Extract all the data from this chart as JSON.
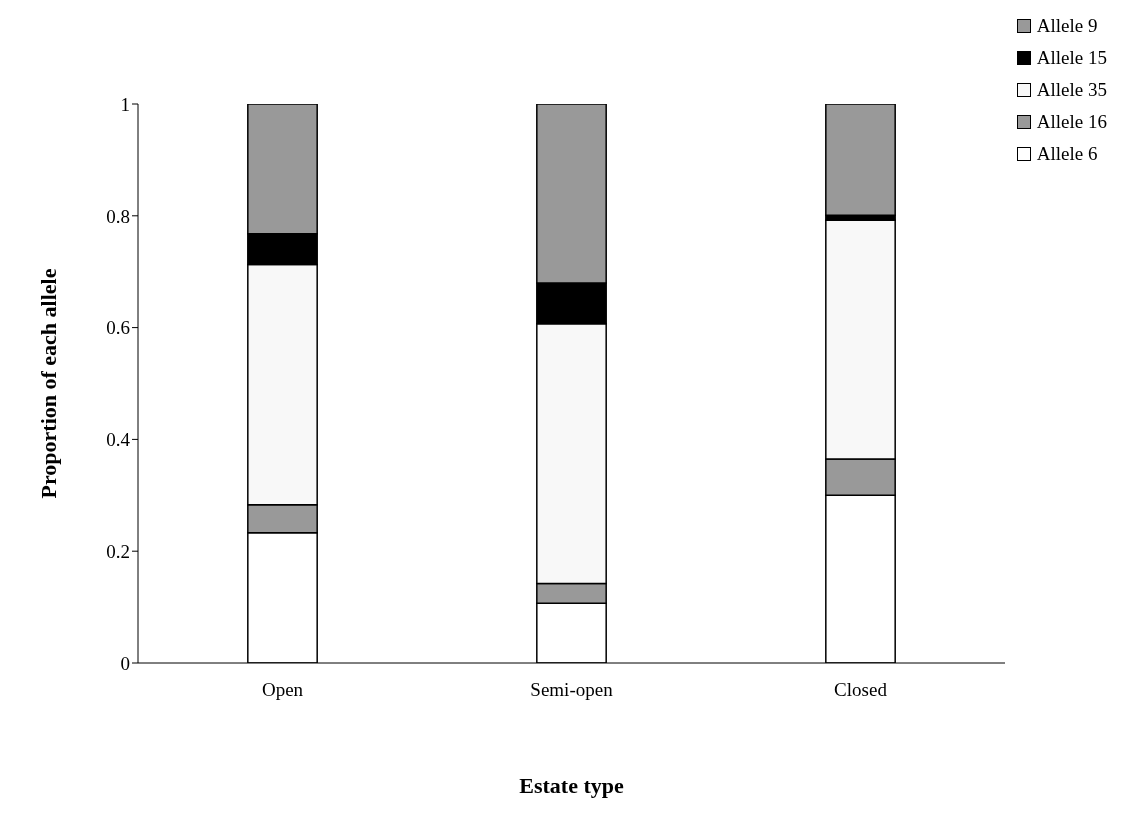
{
  "chart_data": {
    "type": "bar",
    "stacked": true,
    "xlabel": "Estate type",
    "ylabel": "Proportion of each allele",
    "categories": [
      "Open",
      "Semi-open",
      "Closed"
    ],
    "series": [
      {
        "name": "Allele 6",
        "color": "#ffffff",
        "values": [
          0.233,
          0.107,
          0.3
        ]
      },
      {
        "name": "Allele 16",
        "color": "#999999",
        "values": [
          0.05,
          0.035,
          0.065
        ]
      },
      {
        "name": "Allele 35",
        "color": "#f8f8f8",
        "values": [
          0.43,
          0.465,
          0.427
        ]
      },
      {
        "name": "Allele 15",
        "color": "#000000",
        "values": [
          0.055,
          0.073,
          0.009
        ]
      },
      {
        "name": "Allele 9",
        "color": "#999999",
        "values": [
          0.232,
          0.32,
          0.199
        ]
      }
    ],
    "ylim": [
      0,
      1
    ],
    "yticks": [
      0,
      0.2,
      0.4,
      0.6,
      0.8,
      1
    ],
    "grid": false,
    "legend": "top right"
  }
}
